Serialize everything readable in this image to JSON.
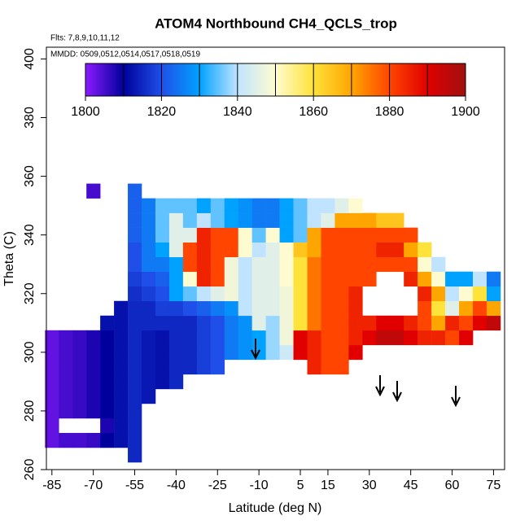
{
  "chart_data": {
    "type": "heatmap",
    "title": "ATOM4 Northbound CH4_QCLS_trop",
    "subtitle": "Flts: 7,8,9,10,11,12",
    "annotation": "MMDD: 0509,0512,0514,0517,0518,0519",
    "x_label": "Latitude (deg N)",
    "y_label": "Theta (C)",
    "xlim": [
      -87,
      79
    ],
    "ylim": [
      260,
      404
    ],
    "xticks": [
      -85,
      -70,
      -55,
      -40,
      -25,
      -10,
      5,
      15,
      30,
      45,
      60,
      75
    ],
    "yticks": [
      260,
      280,
      300,
      320,
      340,
      360,
      380,
      400
    ],
    "clim": [
      1800,
      1900
    ],
    "cticks": [
      1800,
      1820,
      1840,
      1860,
      1880,
      1900
    ],
    "colorbar_levels": [
      1800,
      1810,
      1820,
      1830,
      1840,
      1850,
      1860,
      1870,
      1880,
      1890,
      1900
    ],
    "colors": [
      "#8c1aff",
      "#00009c",
      "#1f4fe8",
      "#00a2ff",
      "#c0e4ff",
      "#fffbd0",
      "#ffe23a",
      "#ffa500",
      "#ff4500",
      "#e00000",
      "#a01010"
    ],
    "x": [
      -85,
      -80,
      -75,
      -70,
      -65,
      -60,
      -55,
      -50,
      -45,
      -40,
      -35,
      -30,
      -25,
      -20,
      -15,
      -10,
      -5,
      0,
      5,
      10,
      15,
      20,
      25,
      30,
      35,
      40,
      45,
      50,
      55,
      60,
      65,
      70,
      75
    ],
    "y": [
      265,
      270,
      275,
      280,
      285,
      290,
      295,
      300,
      305,
      310,
      315,
      320,
      325,
      330,
      335,
      340,
      345,
      350,
      355
    ],
    "z": [
      [
        null,
        null,
        null,
        null,
        null,
        null,
        1815,
        null,
        null,
        null,
        null,
        null,
        null,
        null,
        null,
        null,
        null,
        null,
        null,
        null,
        null,
        null,
        null,
        null,
        null,
        null,
        null,
        null,
        null,
        null,
        null,
        null,
        null
      ],
      [
        1803,
        1805,
        1805,
        1806,
        1810,
        1812,
        1815,
        null,
        null,
        null,
        null,
        null,
        null,
        null,
        null,
        null,
        null,
        null,
        null,
        null,
        null,
        null,
        null,
        null,
        null,
        null,
        null,
        null,
        null,
        null,
        null,
        null,
        null
      ],
      [
        1803,
        null,
        null,
        null,
        1808,
        1812,
        1815,
        null,
        null,
        null,
        null,
        null,
        null,
        null,
        null,
        null,
        null,
        null,
        null,
        null,
        null,
        null,
        null,
        null,
        null,
        null,
        null,
        null,
        null,
        null,
        null,
        null,
        null
      ],
      [
        1803,
        1805,
        1806,
        1808,
        1810,
        1812,
        1815,
        null,
        null,
        null,
        null,
        null,
        null,
        null,
        null,
        null,
        null,
        null,
        null,
        null,
        null,
        null,
        null,
        null,
        null,
        null,
        null,
        null,
        null,
        null,
        null,
        null,
        null
      ],
      [
        1803,
        1805,
        1806,
        1808,
        1810,
        1812,
        1815,
        1813,
        null,
        null,
        null,
        null,
        null,
        null,
        null,
        null,
        null,
        null,
        null,
        null,
        null,
        null,
        null,
        null,
        null,
        null,
        null,
        null,
        null,
        null,
        null,
        null,
        null
      ],
      [
        1803,
        1805,
        1806,
        1808,
        1810,
        1812,
        1815,
        1813,
        1812,
        1815,
        null,
        null,
        null,
        null,
        null,
        null,
        null,
        null,
        null,
        null,
        null,
        null,
        null,
        null,
        null,
        null,
        null,
        null,
        null,
        null,
        null,
        null,
        null
      ],
      [
        1803,
        1805,
        1806,
        1808,
        1810,
        1812,
        1815,
        1813,
        1812,
        1815,
        1815,
        1818,
        1820,
        null,
        null,
        null,
        null,
        null,
        null,
        1885,
        1880,
        1880,
        null,
        null,
        null,
        null,
        null,
        null,
        null,
        null,
        null,
        null,
        null
      ],
      [
        1803,
        1805,
        1806,
        1808,
        1810,
        1812,
        1815,
        1813,
        1812,
        1815,
        1815,
        1818,
        1820,
        1825,
        1828,
        1830,
        1838,
        1842,
        1890,
        1885,
        1880,
        1880,
        1890,
        null,
        null,
        null,
        null,
        null,
        null,
        null,
        null,
        null,
        null
      ],
      [
        1803,
        1805,
        1806,
        1808,
        1810,
        1812,
        1815,
        1813,
        1812,
        1815,
        1815,
        1818,
        1820,
        1825,
        1828,
        1830,
        1838,
        1848,
        1890,
        1885,
        1880,
        1880,
        1885,
        1890,
        1895,
        1895,
        1890,
        1885,
        1885,
        1880,
        1890,
        null,
        null
      ],
      [
        null,
        null,
        null,
        null,
        1812,
        1812,
        1815,
        1815,
        1815,
        1815,
        1815,
        1818,
        1820,
        1825,
        1828,
        1845,
        1838,
        1848,
        1860,
        1875,
        1880,
        1880,
        1885,
        1885,
        1890,
        1890,
        1885,
        1880,
        1870,
        1885,
        1880,
        1890,
        1895
      ],
      [
        null,
        null,
        null,
        null,
        null,
        1812,
        1815,
        1815,
        1818,
        1818,
        1820,
        1822,
        1825,
        1828,
        1840,
        1845,
        1845,
        1848,
        1860,
        1875,
        1880,
        1880,
        1885,
        null,
        null,
        null,
        null,
        1880,
        1860,
        1845,
        1870,
        1880,
        1870
      ],
      [
        null,
        null,
        null,
        null,
        null,
        null,
        1816,
        1818,
        1820,
        1830,
        1835,
        1840,
        1845,
        1848,
        1840,
        1845,
        1845,
        1848,
        1860,
        1875,
        1880,
        1880,
        1885,
        null,
        null,
        null,
        null,
        1885,
        1870,
        1840,
        1850,
        1860,
        1830
      ],
      [
        null,
        null,
        null,
        null,
        null,
        null,
        1818,
        1820,
        1822,
        1830,
        1850,
        1885,
        1880,
        1848,
        1840,
        1845,
        1845,
        1850,
        1860,
        1875,
        1880,
        1880,
        1880,
        1880,
        null,
        null,
        1885,
        1870,
        1850,
        1830,
        1830,
        1840,
        1825
      ],
      [
        null,
        null,
        null,
        null,
        null,
        null,
        1820,
        1825,
        1825,
        1830,
        1880,
        1885,
        1880,
        1848,
        1840,
        1845,
        1845,
        1850,
        1860,
        1875,
        1880,
        1880,
        1880,
        1880,
        1880,
        1880,
        1880,
        1850,
        1840,
        null,
        null,
        null,
        null
      ],
      [
        null,
        null,
        null,
        null,
        null,
        null,
        1820,
        1825,
        1830,
        1845,
        1880,
        1885,
        1880,
        1880,
        1850,
        1840,
        1845,
        1850,
        1865,
        1870,
        1880,
        1880,
        1880,
        1880,
        1885,
        1885,
        1870,
        1860,
        null,
        null,
        null,
        null,
        null
      ],
      [
        null,
        null,
        null,
        null,
        null,
        null,
        1822,
        1825,
        1835,
        1845,
        1845,
        1885,
        1880,
        1880,
        1850,
        1835,
        1850,
        1830,
        1835,
        1870,
        1880,
        1880,
        1880,
        1880,
        1880,
        1880,
        1880,
        null,
        null,
        null,
        null,
        null,
        null
      ],
      [
        null,
        null,
        null,
        null,
        null,
        null,
        1822,
        1825,
        1835,
        1845,
        1835,
        1840,
        1835,
        1830,
        1828,
        1825,
        1825,
        1830,
        1835,
        1840,
        1845,
        1870,
        1870,
        1870,
        1865,
        1865,
        null,
        null,
        null,
        null,
        null,
        null,
        null
      ],
      [
        null,
        null,
        null,
        null,
        null,
        null,
        1822,
        1825,
        1835,
        1835,
        1835,
        1830,
        1835,
        1830,
        1828,
        1825,
        1825,
        1830,
        1835,
        1840,
        1840,
        1845,
        1850,
        null,
        null,
        null,
        null,
        null,
        null,
        null,
        null,
        null,
        null
      ],
      [
        null,
        null,
        null,
        1805,
        null,
        null,
        1822,
        null,
        null,
        null,
        null,
        null,
        null,
        null,
        null,
        null,
        null,
        null,
        null,
        null,
        null,
        null,
        null,
        null,
        null,
        null,
        null,
        null,
        null,
        null,
        null,
        null,
        null
      ]
    ]
  }
}
